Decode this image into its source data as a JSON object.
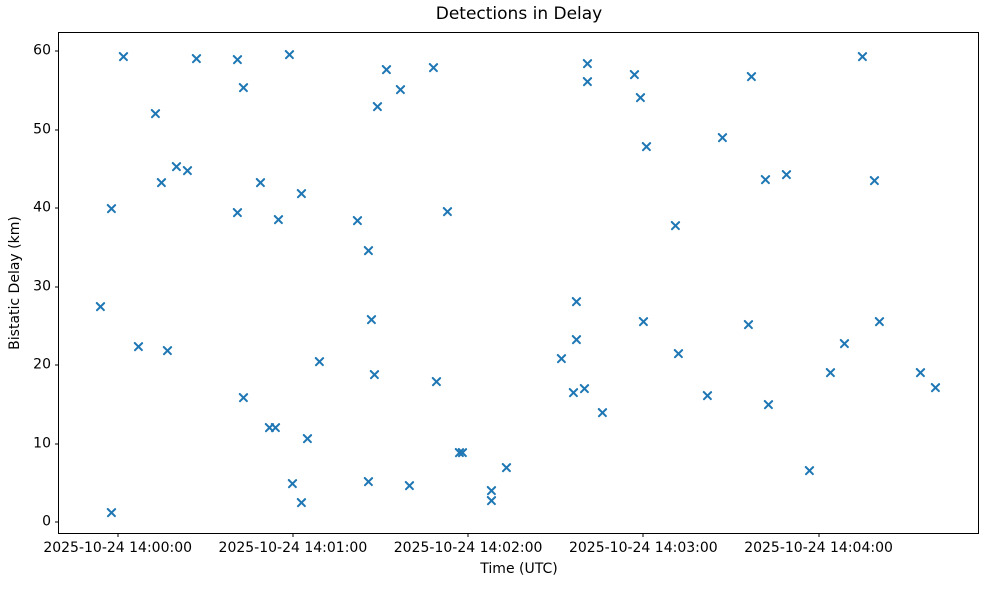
{
  "chart_data": {
    "type": "scatter",
    "title": "Detections in Delay",
    "xlabel": "Time (UTC)",
    "ylabel": "Bistatic Delay (km)",
    "marker": "x",
    "marker_color": "#1f77b4",
    "grid": false,
    "legend_position": "none",
    "x_unit": "seconds since 2025-10-24 14:00:00 UTC",
    "xlim_s": [
      -20.1,
      294.6
    ],
    "ylim": [
      -1.4,
      62.3
    ],
    "x_ticks": [
      {
        "t": 0,
        "label": "2025-10-24 14:00:00"
      },
      {
        "t": 60,
        "label": "2025-10-24 14:01:00"
      },
      {
        "t": 120,
        "label": "2025-10-24 14:02:00"
      },
      {
        "t": 180,
        "label": "2025-10-24 14:03:00"
      },
      {
        "t": 240,
        "label": "2025-10-24 14:04:00"
      }
    ],
    "y_ticks": [
      0,
      10,
      20,
      30,
      40,
      50,
      60
    ],
    "points": [
      [
        -6,
        27.4
      ],
      [
        -2,
        40.0
      ],
      [
        -2,
        1.2
      ],
      [
        2,
        59.3
      ],
      [
        7,
        22.4
      ],
      [
        13,
        52.1
      ],
      [
        15,
        43.3
      ],
      [
        17,
        21.9
      ],
      [
        20,
        45.3
      ],
      [
        24,
        44.8
      ],
      [
        27,
        59.1
      ],
      [
        41,
        58.9
      ],
      [
        41,
        39.4
      ],
      [
        43,
        55.3
      ],
      [
        43,
        15.9
      ],
      [
        49,
        43.3
      ],
      [
        52,
        12.1
      ],
      [
        54,
        12.1
      ],
      [
        55,
        38.6
      ],
      [
        59,
        59.5
      ],
      [
        60,
        4.9
      ],
      [
        63,
        41.9
      ],
      [
        63,
        2.5
      ],
      [
        65,
        10.6
      ],
      [
        69,
        20.4
      ],
      [
        82,
        38.4
      ],
      [
        86,
        34.6
      ],
      [
        86,
        5.1
      ],
      [
        87,
        25.8
      ],
      [
        88,
        18.8
      ],
      [
        89,
        52.9
      ],
      [
        92,
        57.7
      ],
      [
        97,
        55.1
      ],
      [
        100,
        4.6
      ],
      [
        108,
        57.9
      ],
      [
        109,
        17.9
      ],
      [
        113,
        39.5
      ],
      [
        117,
        8.8
      ],
      [
        118,
        8.8
      ],
      [
        128,
        4.0
      ],
      [
        128,
        2.7
      ],
      [
        133,
        7.0
      ],
      [
        152,
        20.8
      ],
      [
        156,
        16.5
      ],
      [
        157,
        23.2
      ],
      [
        157,
        28.1
      ],
      [
        160,
        17.0
      ],
      [
        161,
        58.4
      ],
      [
        161,
        56.1
      ],
      [
        166,
        14.0
      ],
      [
        177,
        57.0
      ],
      [
        179,
        54.1
      ],
      [
        180,
        25.5
      ],
      [
        181,
        47.8
      ],
      [
        191,
        37.8
      ],
      [
        192,
        21.5
      ],
      [
        202,
        16.1
      ],
      [
        207,
        49.0
      ],
      [
        216,
        25.1
      ],
      [
        217,
        56.7
      ],
      [
        222,
        43.6
      ],
      [
        223,
        15.0
      ],
      [
        229,
        44.3
      ],
      [
        237,
        6.5
      ],
      [
        244,
        19.0
      ],
      [
        249,
        22.8
      ],
      [
        255,
        59.3
      ],
      [
        259,
        43.5
      ],
      [
        261,
        25.5
      ],
      [
        275,
        19.1
      ],
      [
        280,
        17.2
      ]
    ]
  }
}
